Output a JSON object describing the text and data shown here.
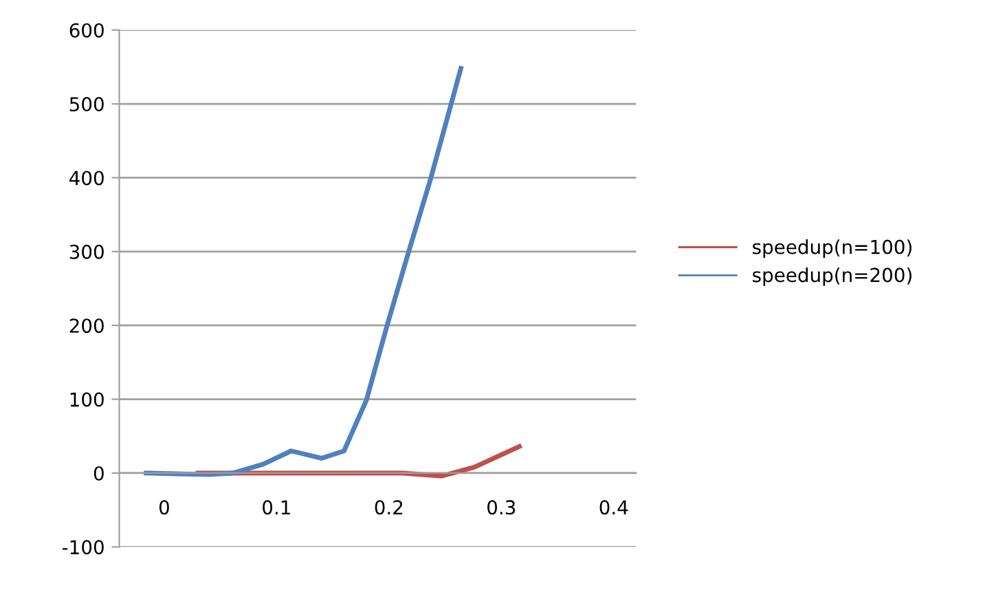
{
  "chart_data": {
    "type": "line",
    "legend": "right",
    "grid": "y",
    "marker": "none",
    "line_style": "solid",
    "xlim": [
      -0.04,
      0.42
    ],
    "xticks": [
      0,
      0.1,
      0.2,
      0.3,
      0.4
    ],
    "ylim": [
      -100,
      600
    ],
    "yticks": [
      -100,
      0,
      100,
      200,
      300,
      400,
      500,
      600
    ],
    "series": [
      {
        "name": "speedup(n=100)",
        "color": "#c0504d",
        "x": [
          0.03,
          0.1,
          0.15,
          0.212,
          0.247,
          0.276,
          0.316
        ],
        "values": [
          0,
          0,
          0,
          0,
          -4,
          8,
          36
        ]
      },
      {
        "name": "speedup(n=200)",
        "color": "#4f81bd",
        "x": [
          -0.016,
          0.04,
          0.061,
          0.088,
          0.113,
          0.14,
          0.16,
          0.18,
          0.198,
          0.217,
          0.237,
          0.264
        ],
        "values": [
          0,
          -2,
          0,
          12,
          30,
          20,
          30,
          99,
          198,
          297,
          398,
          548
        ]
      }
    ]
  }
}
